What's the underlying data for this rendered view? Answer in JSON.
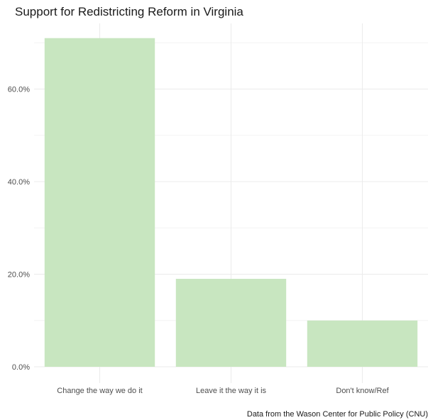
{
  "chart_data": {
    "type": "bar",
    "title": "Support for Redistricting Reform in Virginia",
    "caption": "Data from the Wason Center for Public Policy (CNU)",
    "xlabel": "",
    "ylabel": "",
    "categories": [
      "Change the way we do it",
      "Leave it the way it is",
      "Don't know/Ref"
    ],
    "values": [
      71,
      19,
      10
    ],
    "y_unit": "percent",
    "ylim": [
      0,
      72
    ],
    "y_ticks": [
      0,
      20,
      40,
      60
    ],
    "y_tick_labels": [
      "0.0%",
      "20.0%",
      "40.0%",
      "60.0%"
    ],
    "grid": true,
    "legend": "none",
    "bar_color": "#c8e6c0"
  }
}
